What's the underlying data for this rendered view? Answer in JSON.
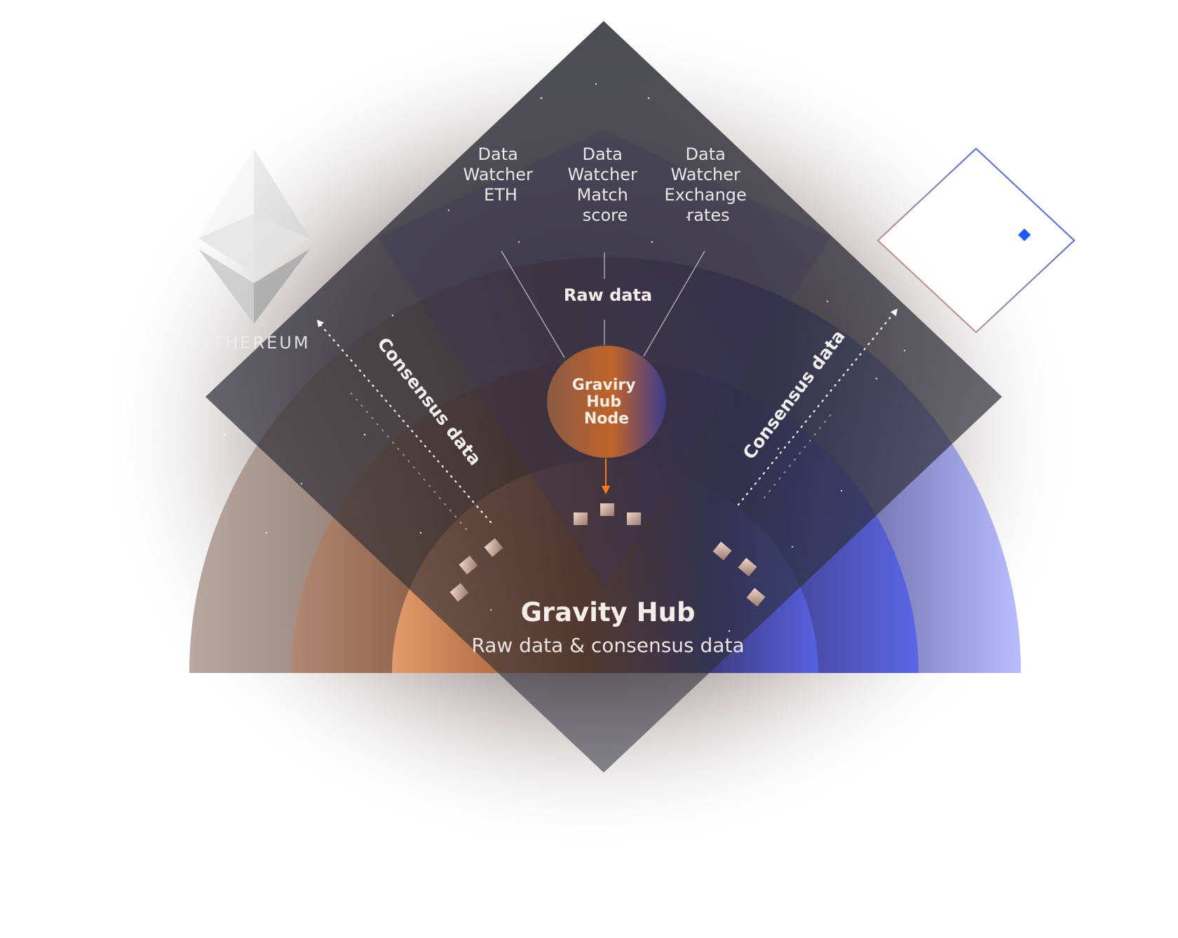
{
  "watchers": [
    {
      "lines": [
        "Data",
        "Watcher",
        "ETH"
      ]
    },
    {
      "lines": [
        "Data",
        "Watcher",
        "Match",
        "score"
      ]
    },
    {
      "lines": [
        "Data",
        "Watcher",
        "Exchange",
        "rates"
      ]
    }
  ],
  "raw_data_label": "Raw data",
  "node": {
    "lines": [
      "Graviry",
      "Hub",
      "Node"
    ]
  },
  "consensus_left": "Consensus data",
  "consensus_right": "Consensus data",
  "hub": {
    "title": "Gravity Hub",
    "subtitle": "Raw data & consensus data"
  },
  "ethereum": {
    "label": "ETHEREUM"
  },
  "waves": {
    "label": "waves"
  },
  "colors": {
    "diamond": "#2c2c34",
    "orange": "#c8733a",
    "blue": "#5b63e6",
    "arrow": "#ff7a1a",
    "accent_blue": "#1e5bff"
  }
}
